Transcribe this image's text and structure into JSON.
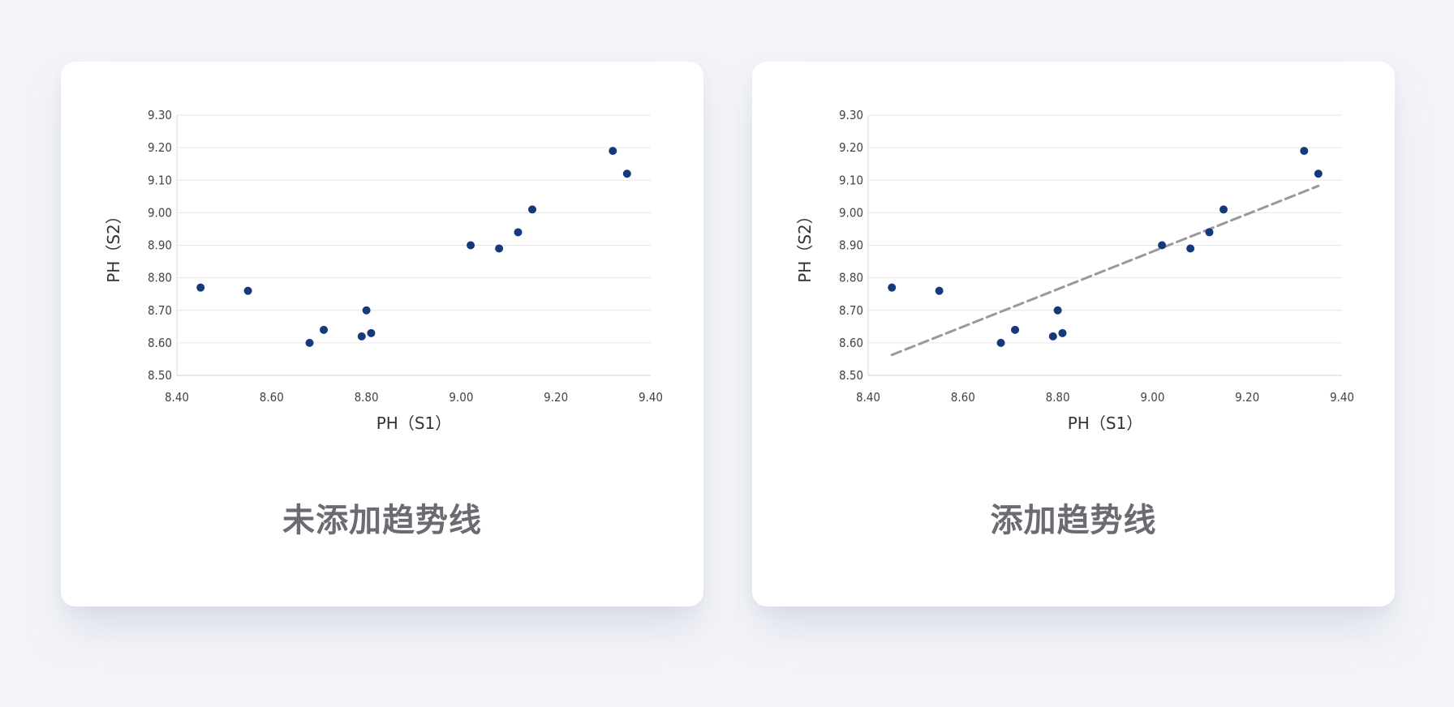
{
  "panels": [
    {
      "caption": "未添加趋势线"
    },
    {
      "caption": "添加趋势线"
    }
  ],
  "chart_data": [
    {
      "type": "scatter",
      "title": "",
      "xlabel": "PH（S1）",
      "ylabel": "PH（S2）",
      "xlim": [
        8.4,
        9.4
      ],
      "ylim": [
        8.5,
        9.3
      ],
      "x_ticks": [
        "8.40",
        "8.60",
        "8.80",
        "9.00",
        "9.20",
        "9.40"
      ],
      "y_ticks": [
        "8.50",
        "8.60",
        "8.70",
        "8.80",
        "8.90",
        "9.00",
        "9.10",
        "9.20",
        "9.30"
      ],
      "grid": "horizontal",
      "marker_color": "#143a7c",
      "trendline": false,
      "points": [
        {
          "x": 8.45,
          "y": 8.77
        },
        {
          "x": 8.55,
          "y": 8.76
        },
        {
          "x": 8.68,
          "y": 8.6
        },
        {
          "x": 8.71,
          "y": 8.64
        },
        {
          "x": 8.79,
          "y": 8.62
        },
        {
          "x": 8.8,
          "y": 8.7
        },
        {
          "x": 8.81,
          "y": 8.63
        },
        {
          "x": 9.02,
          "y": 8.9
        },
        {
          "x": 9.08,
          "y": 8.89
        },
        {
          "x": 9.12,
          "y": 8.94
        },
        {
          "x": 9.15,
          "y": 9.01
        },
        {
          "x": 9.32,
          "y": 9.19
        },
        {
          "x": 9.35,
          "y": 9.12
        }
      ]
    },
    {
      "type": "scatter",
      "title": "",
      "xlabel": "PH（S1）",
      "ylabel": "PH（S2）",
      "xlim": [
        8.4,
        9.4
      ],
      "ylim": [
        8.5,
        9.3
      ],
      "x_ticks": [
        "8.40",
        "8.60",
        "8.80",
        "9.00",
        "9.20",
        "9.40"
      ],
      "y_ticks": [
        "8.50",
        "8.60",
        "8.70",
        "8.80",
        "8.90",
        "9.00",
        "9.10",
        "9.20",
        "9.30"
      ],
      "grid": "horizontal",
      "marker_color": "#143a7c",
      "trendline": true,
      "trendline_color": "#999999",
      "trendline_style": "dashed",
      "points": [
        {
          "x": 8.45,
          "y": 8.77
        },
        {
          "x": 8.55,
          "y": 8.76
        },
        {
          "x": 8.68,
          "y": 8.6
        },
        {
          "x": 8.71,
          "y": 8.64
        },
        {
          "x": 8.79,
          "y": 8.62
        },
        {
          "x": 8.8,
          "y": 8.7
        },
        {
          "x": 8.81,
          "y": 8.63
        },
        {
          "x": 9.02,
          "y": 8.9
        },
        {
          "x": 9.08,
          "y": 8.89
        },
        {
          "x": 9.12,
          "y": 8.94
        },
        {
          "x": 9.15,
          "y": 9.01
        },
        {
          "x": 9.32,
          "y": 9.19
        },
        {
          "x": 9.35,
          "y": 9.12
        }
      ]
    }
  ]
}
